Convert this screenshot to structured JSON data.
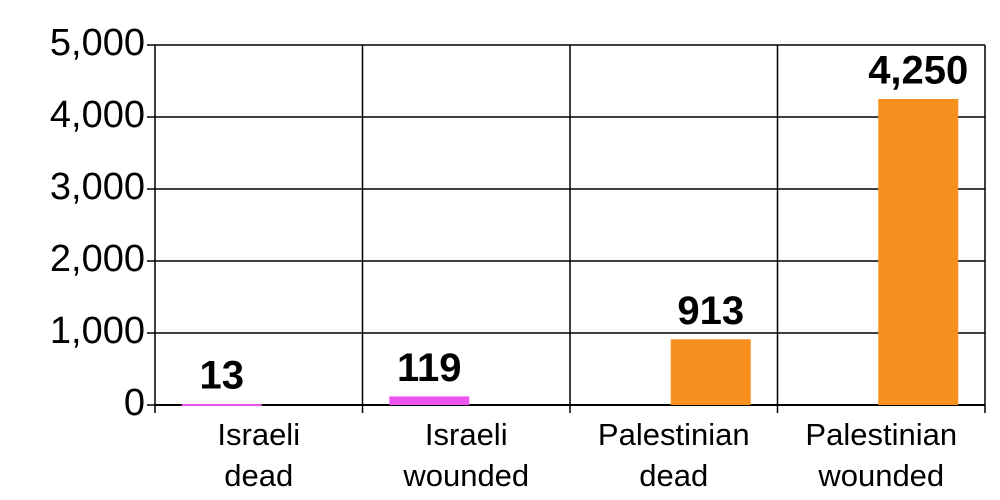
{
  "chart_data": {
    "type": "bar",
    "categories": [
      "Israeli dead",
      "Israeli wounded",
      "Palestinian dead",
      "Palestinian wounded"
    ],
    "series": [
      {
        "color": "#ee55ee",
        "values": [
          13,
          119,
          null,
          null
        ],
        "value_labels": [
          "13",
          "119",
          null,
          null
        ]
      },
      {
        "color": "#f7901e",
        "values": [
          null,
          null,
          913,
          4250
        ],
        "value_labels": [
          null,
          null,
          "913",
          "4,250"
        ]
      }
    ],
    "ylim": [
      0,
      5000
    ],
    "yticks": [
      0,
      {
        "value": 1000,
        "label": "1,000"
      },
      {
        "value": 2000,
        "label": "2,000"
      },
      {
        "value": 3000,
        "label": "3,000"
      },
      {
        "value": 4000,
        "label": "4,000"
      },
      {
        "value": 5000,
        "label": "5,000"
      }
    ],
    "grid": true
  }
}
